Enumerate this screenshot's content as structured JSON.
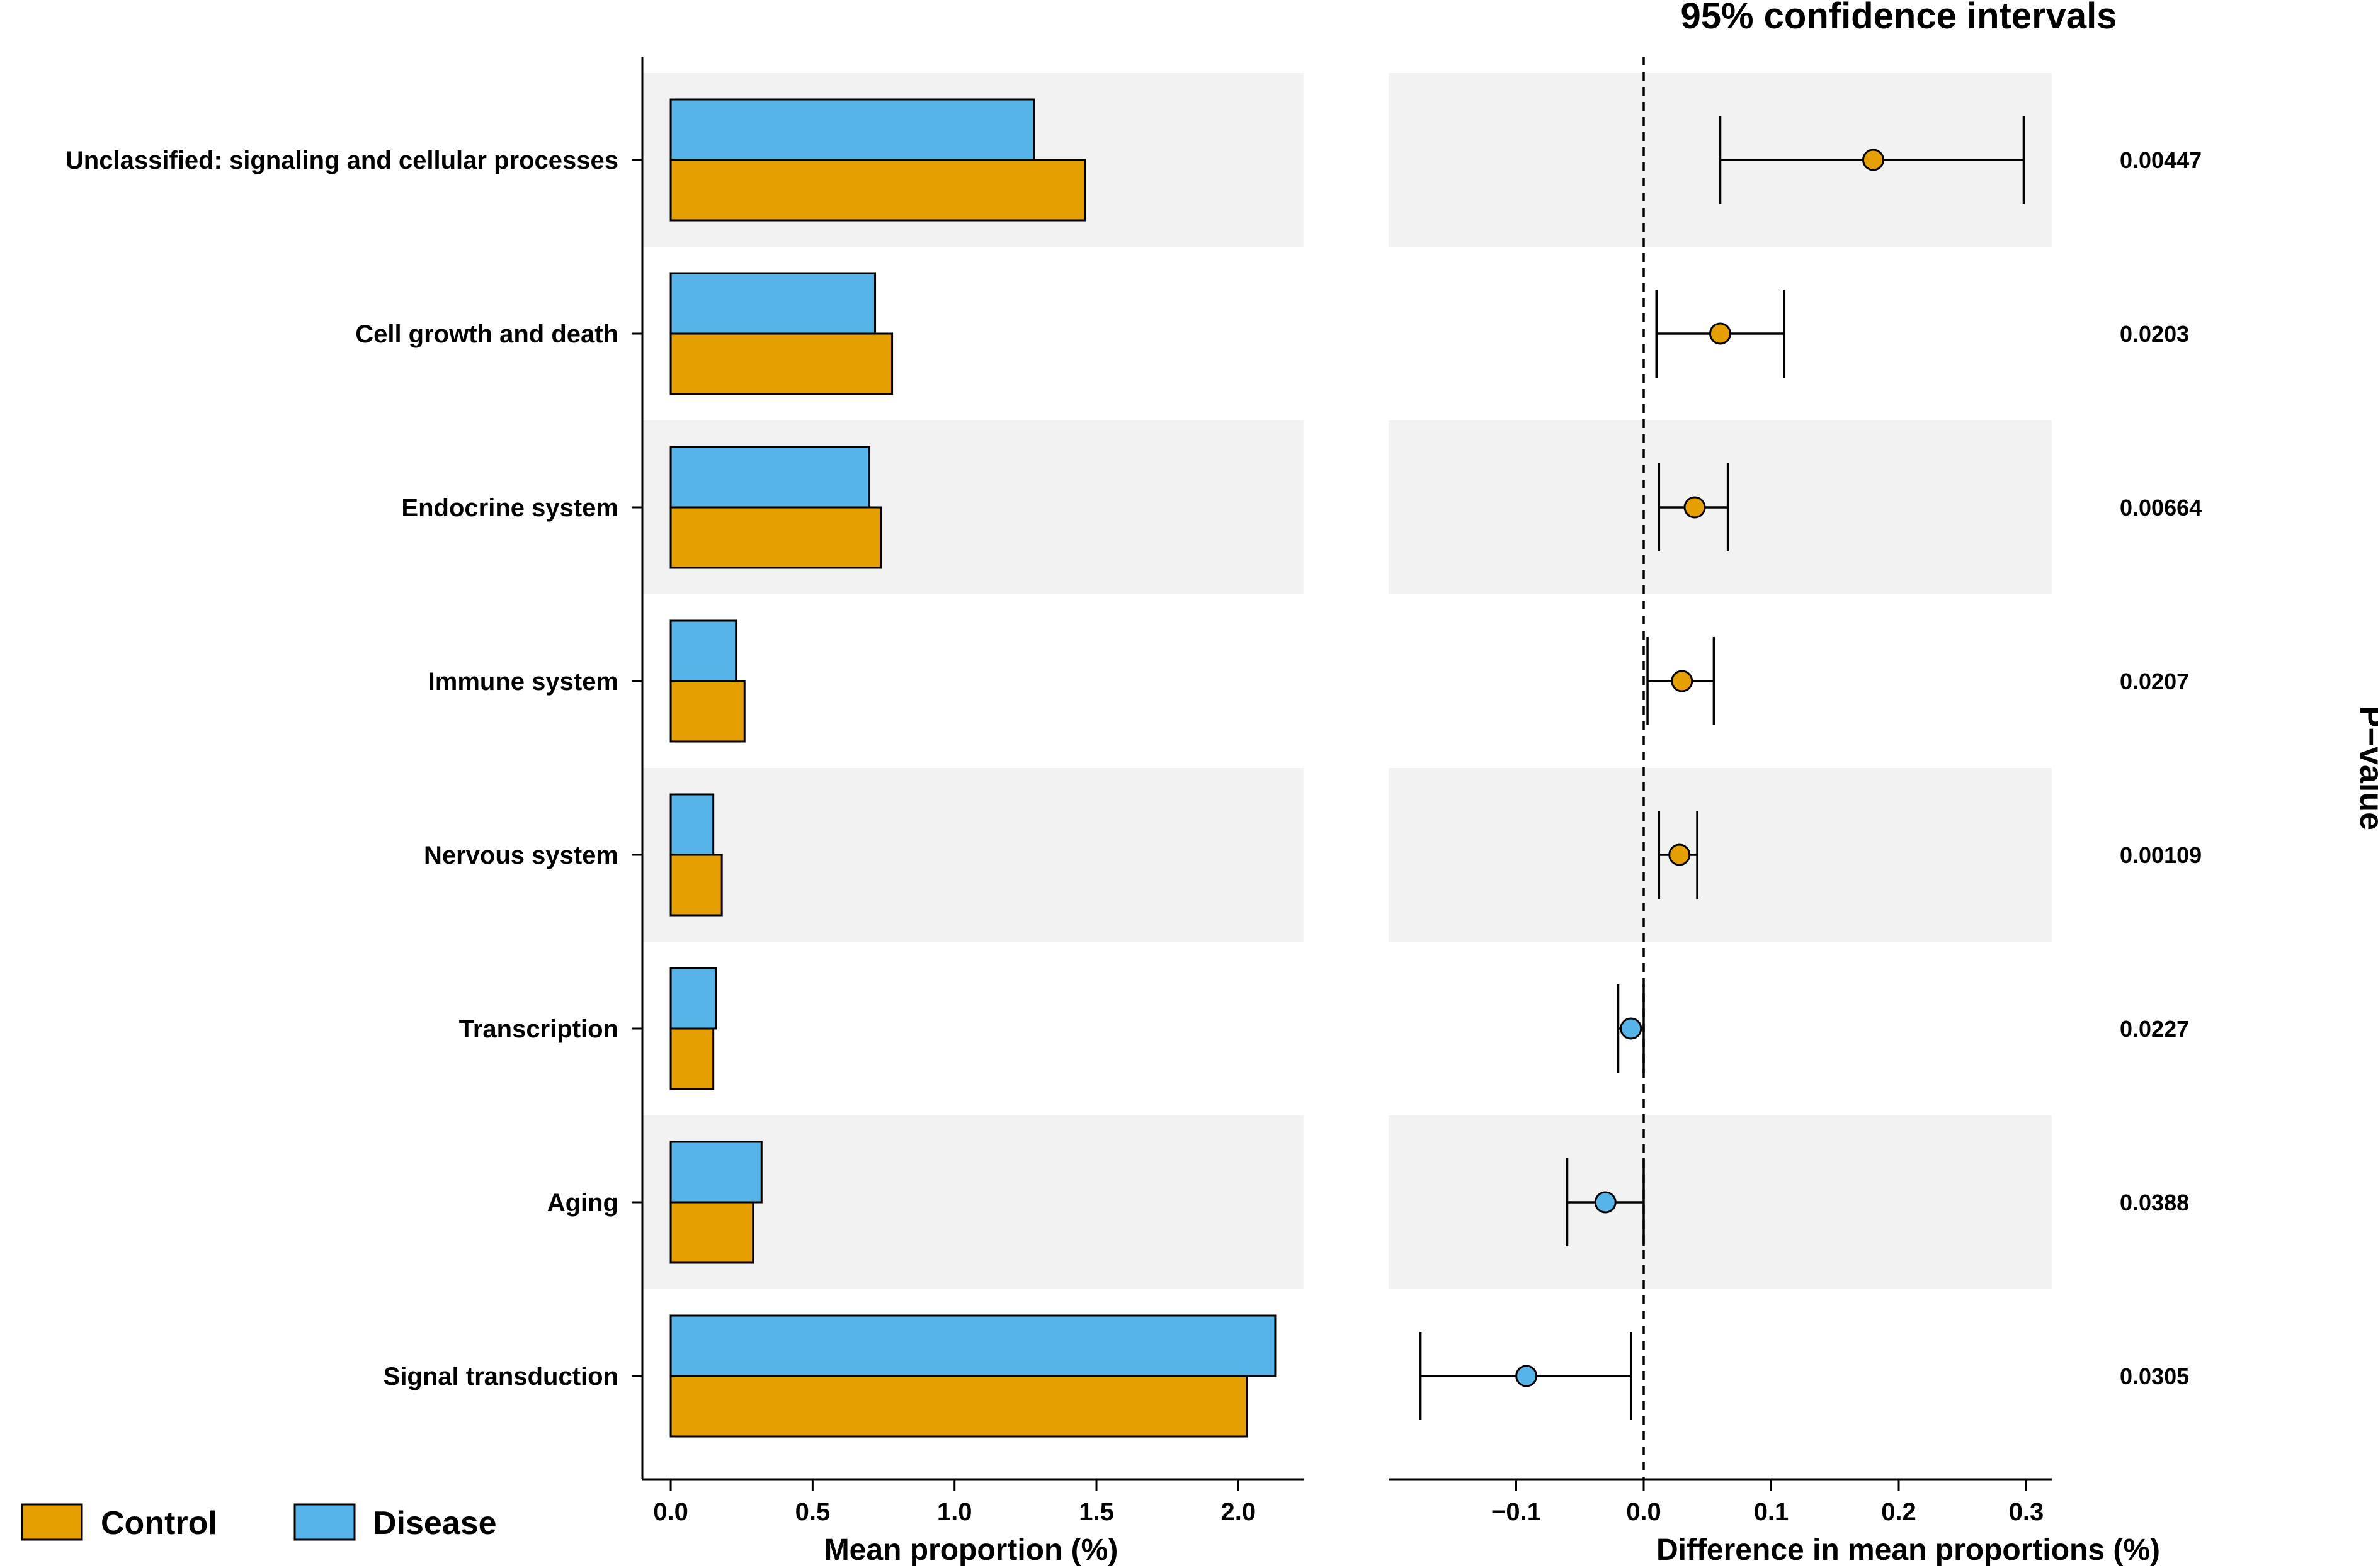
{
  "chart_data": {
    "type": "bar",
    "categories": [
      "Unclassified: signaling and cellular processes",
      "Cell growth and death",
      "Endocrine system",
      "Immune system",
      "Nervous system",
      "Transcription",
      "Aging",
      "Signal transduction"
    ],
    "series": [
      {
        "name": "Disease",
        "color": "#56B4E9",
        "values": [
          1.28,
          0.72,
          0.7,
          0.23,
          0.15,
          0.16,
          0.32,
          2.13
        ]
      },
      {
        "name": "Control",
        "color": "#E69F00",
        "values": [
          1.46,
          0.78,
          0.74,
          0.26,
          0.18,
          0.15,
          0.29,
          2.03
        ]
      }
    ],
    "bar_axis": {
      "title": "Mean proportion (%)",
      "xlim": [
        -0.1,
        2.23
      ],
      "ticks": [
        0.0,
        0.5,
        1.0,
        1.5,
        2.0
      ],
      "tick_labels": [
        "0.0",
        "0.5",
        "1.0",
        "1.5",
        "2.0"
      ]
    },
    "ci_panel": {
      "title": "95% confidence intervals",
      "xlabel": "Difference in mean proportions (%)",
      "xlim": [
        -0.2,
        0.32
      ],
      "ticks": [
        -0.1,
        0.0,
        0.1,
        0.2,
        0.3
      ],
      "tick_labels": [
        "−0.1",
        "0.0",
        "0.1",
        "0.2",
        "0.3"
      ],
      "reference_line": 0.0,
      "estimates": [
        0.18,
        0.06,
        0.04,
        0.03,
        0.028,
        -0.01,
        -0.03,
        -0.092
      ],
      "lower": [
        0.06,
        0.01,
        0.012,
        0.003,
        0.012,
        -0.02,
        -0.06,
        -0.175
      ],
      "upper": [
        0.298,
        0.11,
        0.066,
        0.055,
        0.042,
        0.0,
        0.0,
        -0.01
      ],
      "point_colors": [
        "#E69F00",
        "#E69F00",
        "#E69F00",
        "#E69F00",
        "#E69F00",
        "#56B4E9",
        "#56B4E9",
        "#56B4E9"
      ]
    },
    "p_values": [
      "0.00447",
      "0.0203",
      "0.00664",
      "0.0207",
      "0.00109",
      "0.0227",
      "0.0388",
      "0.0305"
    ],
    "p_value_title": "P−value",
    "legend": [
      {
        "label": "Control",
        "color": "#E69F00"
      },
      {
        "label": "Disease",
        "color": "#56B4E9"
      }
    ],
    "row_shading_color": "#F2F2F2"
  }
}
